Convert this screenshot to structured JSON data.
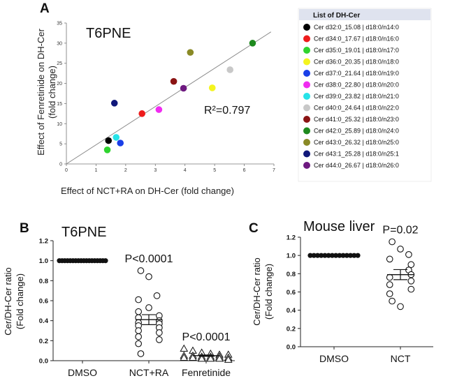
{
  "panels": {
    "A": "A",
    "B": "B",
    "C": "C"
  },
  "chart_data": [
    {
      "type": "scatter",
      "title": "T6PNE",
      "xlabel": "Effect of NCT+RA on DH-Cer (fold change)",
      "ylabel_line1": "Effect of Fenretinide on DH-Cer",
      "ylabel_line2": "(fold change)",
      "xlim": [
        0,
        7
      ],
      "ylim": [
        0,
        35
      ],
      "xticks": [
        "0",
        "1",
        "2",
        "3",
        "4",
        "5",
        "6",
        "7"
      ],
      "yticks": [
        "0",
        "5",
        "10",
        "15",
        "20",
        "25",
        "30",
        "35"
      ],
      "annotation_r2": "R²=0.797",
      "fit_line": {
        "x1": 0,
        "y1": 0,
        "x2": 6.9,
        "y2": 32.8
      },
      "legend_title": "List of DH-Cer",
      "points": [
        {
          "label": "Cer d32:0_15.08 | d18:0/n14:0",
          "color": "#000000",
          "x": 1.42,
          "y": 5.8
        },
        {
          "label": "Cer d34:0_17.67 | d18:0/n16:0",
          "color": "#ee1c1c",
          "x": 2.55,
          "y": 12.5
        },
        {
          "label": "Cer d35:0_19.01 | d18:0/n17:0",
          "color": "#2fd42f",
          "x": 1.38,
          "y": 3.5
        },
        {
          "label": "Cer d36:0_20.35 | d18:0/n18:0",
          "color": "#f4f41e",
          "x": 4.92,
          "y": 18.9
        },
        {
          "label": "Cer d37:0_21.64 | d18:0/n19:0",
          "color": "#1a3fe8",
          "x": 1.82,
          "y": 5.2
        },
        {
          "label": "Cer d38:0_22.80 | d18:0/n20:0",
          "color": "#f02cf0",
          "x": 3.12,
          "y": 13.5
        },
        {
          "label": "Cer d39:0_23.82 | d18:0/n21:0",
          "color": "#27e3e8",
          "x": 1.68,
          "y": 6.6
        },
        {
          "label": "Cer d40:0_24.64 | d18:0/n22:0",
          "color": "#c8c8c8",
          "x": 5.52,
          "y": 23.4
        },
        {
          "label": "Cer d41:0_25.32 | d18:0/n23:0",
          "color": "#8b1414",
          "x": 3.62,
          "y": 20.5
        },
        {
          "label": "Cer d42:0_25.89 | d18:0/n24:0",
          "color": "#1e8a1e",
          "x": 6.28,
          "y": 30.0
        },
        {
          "label": "Cer d43:0_26.32 | d18:0/n25:0",
          "color": "#8a8a26",
          "x": 4.18,
          "y": 27.7
        },
        {
          "label": "Cer d43:1_25.28 | d18:0/n25:1",
          "color": "#10187a",
          "x": 1.62,
          "y": 15.1
        },
        {
          "label": "Cer d44:0_26.67 | d18:0/n26:0",
          "color": "#6e1a80",
          "x": 3.95,
          "y": 18.8
        }
      ]
    },
    {
      "type": "scatter",
      "title": "T6PNE",
      "ylabel_line1": "Cer/DH-Cer ratio",
      "ylabel_line2": "(Fold change)",
      "ylim": [
        0.0,
        1.2
      ],
      "yticks": [
        "0.0",
        "0.2",
        "0.4",
        "0.6",
        "0.8",
        "1.0",
        "1.2"
      ],
      "categories": [
        "DMSO",
        "NCT+RA",
        "Fenretinide"
      ],
      "pvalues": [
        "",
        "P<0.0001",
        "P<0.0001"
      ],
      "means": [
        1.0,
        0.41,
        0.05
      ],
      "sems": [
        0.0,
        0.05,
        0.007
      ],
      "markers": [
        "circle-filled",
        "circle-open",
        "triangle-open"
      ],
      "series": [
        {
          "name": "DMSO",
          "values": [
            1.0,
            1.0,
            1.0,
            1.0,
            1.0,
            1.0,
            1.0,
            1.0,
            1.0,
            1.0,
            1.0,
            1.0,
            1.0,
            1.0,
            1.0,
            1.0,
            1.0,
            1.0
          ]
        },
        {
          "name": "NCT+RA",
          "values": [
            0.9,
            0.84,
            0.65,
            0.61,
            0.53,
            0.49,
            0.45,
            0.43,
            0.4,
            0.38,
            0.37,
            0.35,
            0.33,
            0.3,
            0.28,
            0.24,
            0.21,
            0.17,
            0.07
          ]
        },
        {
          "name": "Fenretinide",
          "values": [
            0.12,
            0.1,
            0.08,
            0.07,
            0.06,
            0.06,
            0.05,
            0.05,
            0.04,
            0.04,
            0.04,
            0.03,
            0.03,
            0.03,
            0.02,
            0.02,
            0.02,
            0.01
          ]
        }
      ]
    },
    {
      "type": "scatter",
      "title": "Mouse liver",
      "ylabel_line1": "Cer/DH-Cer ratio",
      "ylabel_line2": "(Fold change)",
      "ylim": [
        0.0,
        1.2
      ],
      "yticks": [
        "0.0",
        "0.2",
        "0.4",
        "0.6",
        "0.8",
        "1.0",
        "1.2"
      ],
      "categories": [
        "DMSO",
        "NCT"
      ],
      "pvalues": [
        "",
        "P=0.02"
      ],
      "means": [
        1.0,
        0.79
      ],
      "sems": [
        0.0,
        0.055
      ],
      "markers": [
        "circle-filled",
        "circle-open"
      ],
      "series": [
        {
          "name": "DMSO",
          "values": [
            1.0,
            1.0,
            1.0,
            1.0,
            1.0,
            1.0,
            1.0,
            1.0,
            1.0,
            1.0,
            1.0,
            1.0,
            1.0,
            1.0
          ]
        },
        {
          "name": "NCT",
          "values": [
            1.15,
            1.07,
            1.01,
            0.96,
            0.9,
            0.84,
            0.79,
            0.76,
            0.72,
            0.68,
            0.63,
            0.58,
            0.5,
            0.44
          ]
        }
      ]
    }
  ]
}
